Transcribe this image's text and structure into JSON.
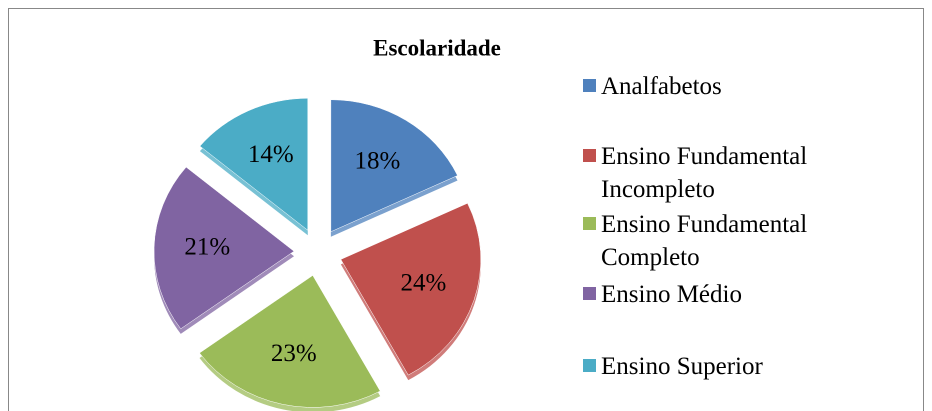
{
  "chart_data": {
    "type": "pie",
    "title": "Escolaridade",
    "categories": [
      "Analfabetos",
      "Ensino Fundamental Incompleto",
      "Ensino Fundamental Completo",
      "Ensino Médio",
      "Ensino Superior"
    ],
    "values": [
      18,
      24,
      23,
      21,
      14
    ],
    "value_labels": [
      "18%",
      "24%",
      "23%",
      "21%",
      "14%"
    ],
    "colors": [
      "#4f81bd",
      "#c0504d",
      "#9bbb59",
      "#8064a2",
      "#4bacc6"
    ],
    "legend": "right"
  }
}
